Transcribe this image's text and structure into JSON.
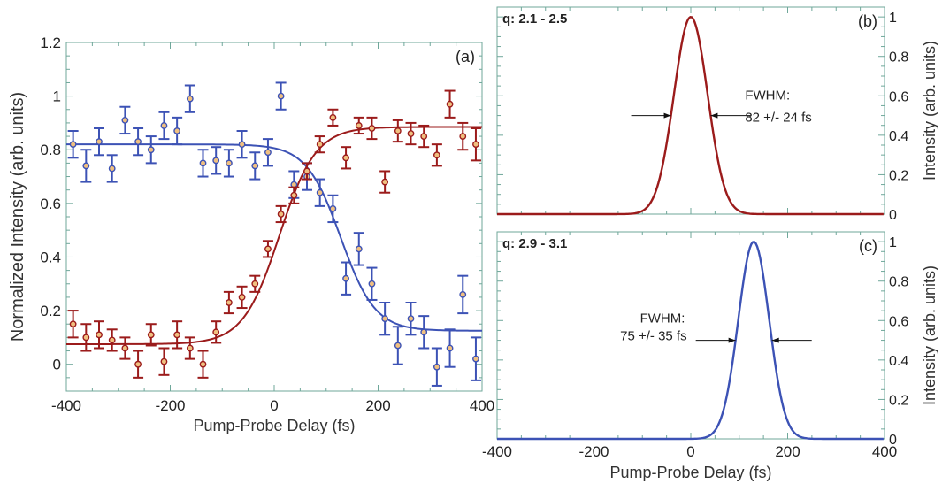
{
  "colors": {
    "red_series": "#9b1b1b",
    "blue_series": "#3c52b5",
    "frame": "#6fa79a",
    "text": "#222222"
  },
  "chart_data": [
    {
      "id": "a",
      "type": "scatter",
      "panel_tag": "(a)",
      "xlabel": "Pump-Probe Delay (fs)",
      "ylabel": "Normalized Intensity (arb. units)",
      "xlim": [
        -400,
        400
      ],
      "ylim": [
        -0.1,
        1.2
      ],
      "xticks": [
        -400,
        -200,
        0,
        200,
        400
      ],
      "yticks": [
        0,
        0.2,
        0.4,
        0.6,
        0.8,
        1,
        1.2
      ],
      "ytick_labels": [
        "0",
        "0.2",
        "0.4",
        "0.6",
        "0.8",
        "1",
        "1.2"
      ],
      "grid": false,
      "series": [
        {
          "color": "#3c52b5",
          "marker": "open-circle",
          "error_bars": true,
          "points": [
            {
              "x": -387,
              "y": 0.82,
              "err": 0.05
            },
            {
              "x": -362,
              "y": 0.74,
              "err": 0.06
            },
            {
              "x": -337,
              "y": 0.83,
              "err": 0.05
            },
            {
              "x": -312,
              "y": 0.73,
              "err": 0.05
            },
            {
              "x": -287,
              "y": 0.91,
              "err": 0.05
            },
            {
              "x": -262,
              "y": 0.83,
              "err": 0.05
            },
            {
              "x": -237,
              "y": 0.8,
              "err": 0.05
            },
            {
              "x": -212,
              "y": 0.89,
              "err": 0.05
            },
            {
              "x": -187,
              "y": 0.87,
              "err": 0.05
            },
            {
              "x": -162,
              "y": 0.99,
              "err": 0.05
            },
            {
              "x": -137,
              "y": 0.75,
              "err": 0.05
            },
            {
              "x": -112,
              "y": 0.76,
              "err": 0.05
            },
            {
              "x": -87,
              "y": 0.75,
              "err": 0.05
            },
            {
              "x": -62,
              "y": 0.82,
              "err": 0.05
            },
            {
              "x": -37,
              "y": 0.74,
              "err": 0.05
            },
            {
              "x": -12,
              "y": 0.79,
              "err": 0.05
            },
            {
              "x": 13,
              "y": 1.0,
              "err": 0.05
            },
            {
              "x": 38,
              "y": 0.67,
              "err": 0.05
            },
            {
              "x": 63,
              "y": 0.7,
              "err": 0.05
            },
            {
              "x": 88,
              "y": 0.64,
              "err": 0.05
            },
            {
              "x": 113,
              "y": 0.58,
              "err": 0.05
            },
            {
              "x": 138,
              "y": 0.32,
              "err": 0.06
            },
            {
              "x": 163,
              "y": 0.43,
              "err": 0.06
            },
            {
              "x": 188,
              "y": 0.3,
              "err": 0.06
            },
            {
              "x": 213,
              "y": 0.17,
              "err": 0.06
            },
            {
              "x": 238,
              "y": 0.07,
              "err": 0.07
            },
            {
              "x": 263,
              "y": 0.17,
              "err": 0.06
            },
            {
              "x": 288,
              "y": 0.12,
              "err": 0.06
            },
            {
              "x": 313,
              "y": -0.01,
              "err": 0.07
            },
            {
              "x": 338,
              "y": 0.06,
              "err": 0.07
            },
            {
              "x": 363,
              "y": 0.26,
              "err": 0.07
            },
            {
              "x": 388,
              "y": 0.02,
              "err": 0.08
            }
          ],
          "fit": {
            "kind": "step-down",
            "high": 0.82,
            "low": 0.125,
            "center": 128,
            "width": 33
          }
        },
        {
          "color": "#9b1b1b",
          "marker": "open-circle",
          "error_bars": true,
          "points": [
            {
              "x": -387,
              "y": 0.15,
              "err": 0.05
            },
            {
              "x": -362,
              "y": 0.1,
              "err": 0.05
            },
            {
              "x": -337,
              "y": 0.11,
              "err": 0.05
            },
            {
              "x": -312,
              "y": 0.09,
              "err": 0.04
            },
            {
              "x": -287,
              "y": 0.06,
              "err": 0.04
            },
            {
              "x": -262,
              "y": 0.0,
              "err": 0.05
            },
            {
              "x": -237,
              "y": 0.11,
              "err": 0.04
            },
            {
              "x": -212,
              "y": 0.01,
              "err": 0.05
            },
            {
              "x": -187,
              "y": 0.11,
              "err": 0.05
            },
            {
              "x": -162,
              "y": 0.06,
              "err": 0.04
            },
            {
              "x": -137,
              "y": 0.0,
              "err": 0.05
            },
            {
              "x": -112,
              "y": 0.12,
              "err": 0.04
            },
            {
              "x": -87,
              "y": 0.23,
              "err": 0.04
            },
            {
              "x": -62,
              "y": 0.25,
              "err": 0.04
            },
            {
              "x": -37,
              "y": 0.3,
              "err": 0.03
            },
            {
              "x": -12,
              "y": 0.43,
              "err": 0.03
            },
            {
              "x": 13,
              "y": 0.56,
              "err": 0.03
            },
            {
              "x": 38,
              "y": 0.63,
              "err": 0.03
            },
            {
              "x": 63,
              "y": 0.72,
              "err": 0.03
            },
            {
              "x": 88,
              "y": 0.82,
              "err": 0.03
            },
            {
              "x": 113,
              "y": 0.92,
              "err": 0.03
            },
            {
              "x": 138,
              "y": 0.77,
              "err": 0.04
            },
            {
              "x": 163,
              "y": 0.89,
              "err": 0.03
            },
            {
              "x": 188,
              "y": 0.88,
              "err": 0.04
            },
            {
              "x": 213,
              "y": 0.68,
              "err": 0.04
            },
            {
              "x": 238,
              "y": 0.87,
              "err": 0.04
            },
            {
              "x": 263,
              "y": 0.86,
              "err": 0.04
            },
            {
              "x": 288,
              "y": 0.85,
              "err": 0.04
            },
            {
              "x": 313,
              "y": 0.78,
              "err": 0.04
            },
            {
              "x": 338,
              "y": 0.97,
              "err": 0.05
            },
            {
              "x": 363,
              "y": 0.85,
              "err": 0.05
            },
            {
              "x": 388,
              "y": 0.82,
              "err": 0.06
            }
          ],
          "fit": {
            "kind": "step-up",
            "high": 0.885,
            "low": 0.075,
            "center": 10,
            "width": 35
          }
        }
      ]
    },
    {
      "id": "b",
      "type": "line",
      "panel_tag": "(b)",
      "q_label": "q: 2.1 - 2.5",
      "ylabel": "Intensity (arb. units)",
      "xlim": [
        -400,
        400
      ],
      "ylim": [
        0,
        1.05
      ],
      "yticks": [
        0,
        0.2,
        0.4,
        0.6,
        0.8,
        1
      ],
      "ytick_labels": [
        "0",
        "0.2",
        "0.4",
        "0.6",
        "0.8",
        "1"
      ],
      "series": [
        {
          "color": "#9b1b1b",
          "center": 0,
          "fwhm": 82
        }
      ],
      "annotation": {
        "lines": [
          "FWHM:",
          "82 +/- 24 fs"
        ]
      }
    },
    {
      "id": "c",
      "type": "line",
      "panel_tag": "(c)",
      "q_label": "q: 2.9 - 3.1",
      "xlabel": "Pump-Probe Delay (fs)",
      "ylabel": "Intensity (arb. units)",
      "xlim": [
        -400,
        400
      ],
      "ylim": [
        0,
        1.05
      ],
      "xticks": [
        -400,
        -200,
        0,
        200,
        400
      ],
      "yticks": [
        0,
        0.2,
        0.4,
        0.6,
        0.8,
        1
      ],
      "ytick_labels": [
        "0",
        "0.2",
        "0.4",
        "0.6",
        "0.8",
        "1"
      ],
      "series": [
        {
          "color": "#3c52b5",
          "center": 130,
          "fwhm": 75
        }
      ],
      "annotation": {
        "lines": [
          "FWHM:",
          "75 +/- 35 fs"
        ]
      }
    }
  ]
}
